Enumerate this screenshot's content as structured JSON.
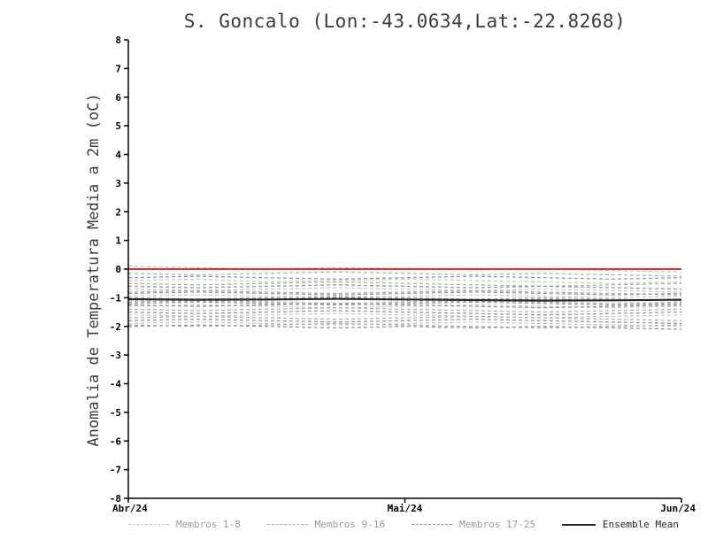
{
  "chart_data": {
    "type": "line",
    "title": "S. Goncalo (Lon:-43.0634,Lat:-22.8268)",
    "ylabel": "Anomalia de Temperatura Media a 2m (oC)",
    "xlabel": "",
    "ylim": [
      -8,
      8
    ],
    "ytick_step": 1,
    "xticks": [
      "Abr/24",
      "Mai/24",
      "Jun/24"
    ],
    "grid": false,
    "legend_position": "bottom",
    "axis_color": "#000000",
    "reference_line": {
      "y": 0,
      "color": "#e03232"
    },
    "groups": [
      {
        "name": "Membros 1-8",
        "color": "#c6c6c6",
        "dash": "4 3",
        "members": [
          [
            0.1,
            0.05,
            0.0,
            0.05,
            0.02,
            -0.02,
            0.0,
            -0.05,
            -0.1
          ],
          [
            -0.4,
            -0.35,
            -0.45,
            -0.4,
            -0.35,
            -0.4,
            -0.45,
            -0.5,
            -0.45
          ],
          [
            -0.7,
            -0.75,
            -0.7,
            -0.65,
            -0.7,
            -0.75,
            -0.7,
            -0.75,
            -0.8
          ],
          [
            -0.95,
            -0.9,
            -0.95,
            -1.0,
            -0.95,
            -0.9,
            -0.95,
            -1.0,
            -0.95
          ],
          [
            -1.1,
            -1.15,
            -1.1,
            -1.05,
            -1.1,
            -1.15,
            -1.1,
            -1.05,
            -1.1
          ],
          [
            -1.3,
            -1.25,
            -1.3,
            -1.35,
            -1.3,
            -1.25,
            -1.3,
            -1.35,
            -1.3
          ],
          [
            -1.6,
            -1.65,
            -1.6,
            -1.55,
            -1.6,
            -1.65,
            -1.7,
            -1.65,
            -1.6
          ],
          [
            -1.9,
            -1.85,
            -1.9,
            -1.95,
            -1.9,
            -1.85,
            -1.9,
            -1.95,
            -2.0
          ]
        ]
      },
      {
        "name": "Membros 9-16",
        "color": "#ababab",
        "dash": "4 3",
        "members": [
          [
            -0.15,
            -0.2,
            -0.15,
            -0.1,
            -0.15,
            -0.2,
            -0.15,
            -0.2,
            -0.25
          ],
          [
            -0.5,
            -0.55,
            -0.5,
            -0.45,
            -0.5,
            -0.55,
            -0.6,
            -0.55,
            -0.5
          ],
          [
            -0.8,
            -0.75,
            -0.8,
            -0.85,
            -0.8,
            -0.75,
            -0.8,
            -0.85,
            -0.9
          ],
          [
            -1.0,
            -1.05,
            -1.0,
            -0.95,
            -1.0,
            -1.05,
            -1.0,
            -1.05,
            -1.1
          ],
          [
            -1.15,
            -1.1,
            -1.15,
            -1.2,
            -1.15,
            -1.1,
            -1.15,
            -1.2,
            -1.15
          ],
          [
            -1.4,
            -1.45,
            -1.4,
            -1.35,
            -1.4,
            -1.45,
            -1.5,
            -1.45,
            -1.4
          ],
          [
            -1.7,
            -1.65,
            -1.7,
            -1.75,
            -1.7,
            -1.65,
            -1.7,
            -1.75,
            -1.8
          ],
          [
            -1.95,
            -2.0,
            -1.95,
            -1.9,
            -1.95,
            -2.0,
            -2.05,
            -2.0,
            -1.95
          ]
        ]
      },
      {
        "name": "Membros 17-25",
        "color": "#8f8f8f",
        "dash": "4 3",
        "members": [
          [
            -0.3,
            -0.25,
            -0.3,
            -0.35,
            -0.3,
            -0.25,
            -0.3,
            -0.35,
            -0.3
          ],
          [
            -0.6,
            -0.65,
            -0.6,
            -0.55,
            -0.6,
            -0.65,
            -0.6,
            -0.65,
            -0.7
          ],
          [
            -0.85,
            -0.8,
            -0.85,
            -0.9,
            -0.85,
            -0.8,
            -0.85,
            -0.9,
            -0.85
          ],
          [
            -1.05,
            -1.1,
            -1.05,
            -1.0,
            -1.05,
            -1.1,
            -1.05,
            -1.1,
            -1.05
          ],
          [
            -1.2,
            -1.15,
            -1.2,
            -1.25,
            -1.2,
            -1.15,
            -1.2,
            -1.25,
            -1.2
          ],
          [
            -1.25,
            -1.3,
            -1.25,
            -1.2,
            -1.25,
            -1.3,
            -1.35,
            -1.3,
            -1.25
          ],
          [
            -1.5,
            -1.55,
            -1.5,
            -1.45,
            -1.5,
            -1.55,
            -1.6,
            -1.55,
            -1.5
          ],
          [
            -1.8,
            -1.75,
            -1.8,
            -1.85,
            -1.8,
            -1.75,
            -1.8,
            -1.85,
            -1.9
          ],
          [
            -2.0,
            -1.95,
            -2.0,
            -2.05,
            -2.0,
            -2.05,
            -2.0,
            -2.05,
            -2.1
          ]
        ]
      }
    ],
    "ensemble_mean": {
      "name": "Ensemble Mean",
      "color": "#2b2b2b",
      "values": [
        -1.05,
        -1.07,
        -1.06,
        -1.04,
        -1.06,
        -1.08,
        -1.1,
        -1.09,
        -1.07
      ]
    }
  }
}
